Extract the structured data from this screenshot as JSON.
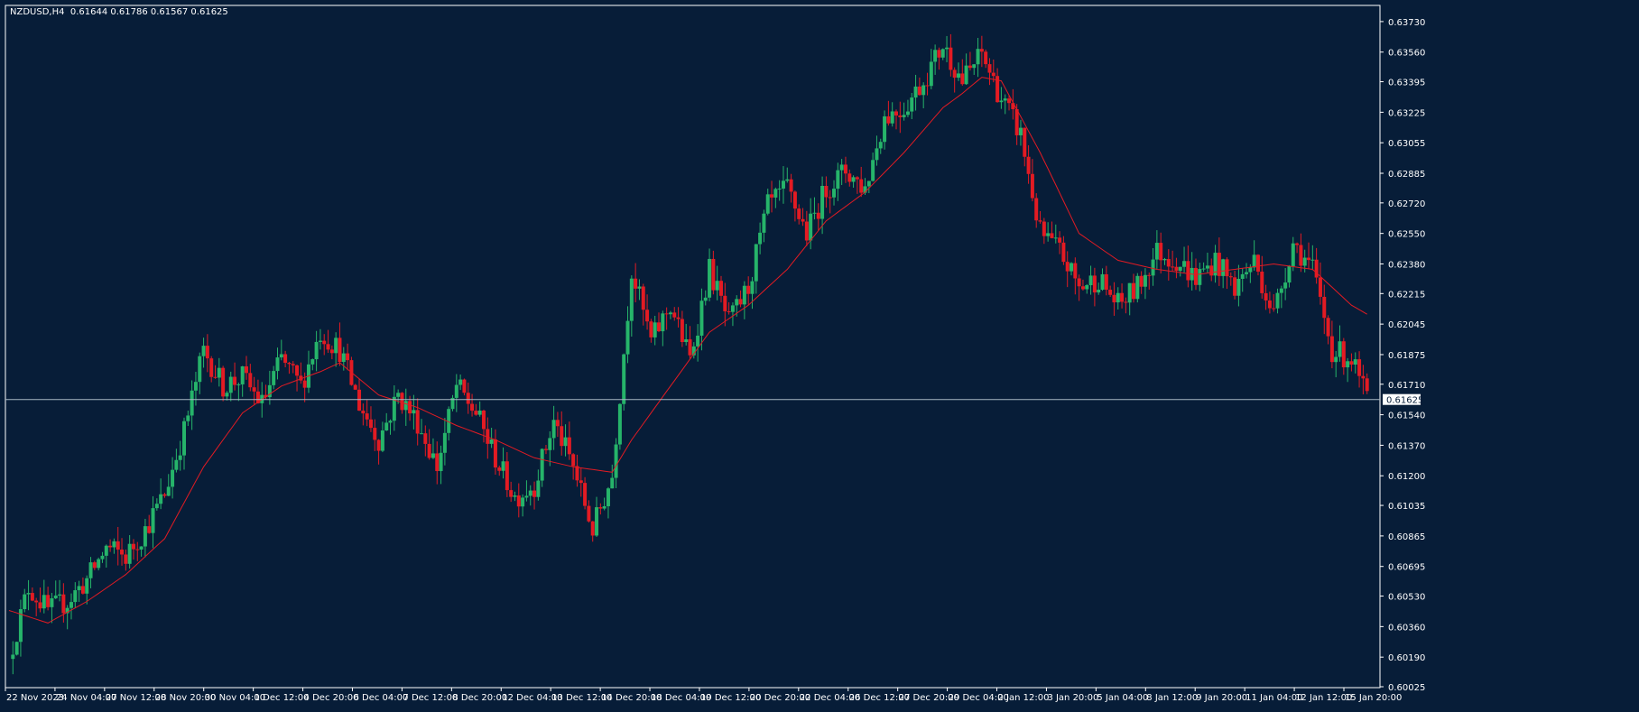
{
  "header": {
    "symbol": "NZDUSD,H4",
    "ohlc": "0.61644 0.61786 0.61567 0.61625"
  },
  "colors": {
    "background": "#071d38",
    "frame": "#ffffff",
    "bull": "#26b46a",
    "bear": "#e31b23",
    "moving_average": "#e31b23",
    "bid_line": "#a8b8c4"
  },
  "chart_data": {
    "type": "candlestick",
    "symbol": "NZDUSD",
    "timeframe": "H4",
    "current_price": 0.61625,
    "ylim": [
      0.6002,
      0.6382
    ],
    "y_ticks": [
      "0.63730",
      "0.63560",
      "0.63395",
      "0.63225",
      "0.63055",
      "0.62885",
      "0.62720",
      "0.62550",
      "0.62380",
      "0.62215",
      "0.62045",
      "0.61875",
      "0.61710",
      "0.61540",
      "0.61370",
      "0.61200",
      "0.61035",
      "0.60865",
      "0.60695",
      "0.60530",
      "0.60360",
      "0.60190",
      "0.60025"
    ],
    "price_label": "0.61625",
    "x_ticks": [
      "22 Nov 2023",
      "24 Nov 04:00",
      "27 Nov 12:00",
      "28 Nov 20:00",
      "30 Nov 04:00",
      "1 Dec 12:00",
      "4 Dec 20:00",
      "6 Dec 04:00",
      "7 Dec 12:00",
      "8 Dec 20:00",
      "12 Dec 04:00",
      "13 Dec 12:00",
      "14 Dec 20:00",
      "18 Dec 04:00",
      "19 Dec 12:00",
      "20 Dec 20:00",
      "22 Dec 04:00",
      "26 Dec 12:00",
      "27 Dec 20:00",
      "29 Dec 04:00",
      "2 Jan 12:00",
      "3 Jan 20:00",
      "5 Jan 04:00",
      "8 Jan 12:00",
      "9 Jan 20:00",
      "11 Jan 04:00",
      "12 Jan 12:00",
      "15 Jan 20:00"
    ],
    "close_path": [
      [
        0,
        0.6018
      ],
      [
        5,
        0.6058
      ],
      [
        10,
        0.6045
      ],
      [
        15,
        0.605
      ],
      [
        20,
        0.6062
      ],
      [
        25,
        0.608
      ],
      [
        30,
        0.6075
      ],
      [
        35,
        0.609
      ],
      [
        40,
        0.611
      ],
      [
        45,
        0.6145
      ],
      [
        50,
        0.619
      ],
      [
        55,
        0.617
      ],
      [
        60,
        0.6175
      ],
      [
        65,
        0.616
      ],
      [
        70,
        0.6185
      ],
      [
        75,
        0.617
      ],
      [
        80,
        0.62
      ],
      [
        85,
        0.619
      ],
      [
        90,
        0.616
      ],
      [
        95,
        0.614
      ],
      [
        100,
        0.6165
      ],
      [
        105,
        0.615
      ],
      [
        110,
        0.6125
      ],
      [
        115,
        0.617
      ],
      [
        120,
        0.6155
      ],
      [
        125,
        0.613
      ],
      [
        130,
        0.6108
      ],
      [
        135,
        0.6115
      ],
      [
        140,
        0.615
      ],
      [
        145,
        0.6125
      ],
      [
        150,
        0.609
      ],
      [
        155,
        0.612
      ],
      [
        160,
        0.6235
      ],
      [
        165,
        0.6195
      ],
      [
        170,
        0.6215
      ],
      [
        175,
        0.6185
      ],
      [
        180,
        0.6235
      ],
      [
        185,
        0.6205
      ],
      [
        190,
        0.6225
      ],
      [
        195,
        0.627
      ],
      [
        200,
        0.628
      ],
      [
        205,
        0.6255
      ],
      [
        210,
        0.628
      ],
      [
        215,
        0.629
      ],
      [
        220,
        0.628
      ],
      [
        225,
        0.632
      ],
      [
        230,
        0.6325
      ],
      [
        235,
        0.634
      ],
      [
        240,
        0.636
      ],
      [
        245,
        0.634
      ],
      [
        250,
        0.6355
      ],
      [
        255,
        0.633
      ],
      [
        260,
        0.631
      ],
      [
        265,
        0.6255
      ],
      [
        270,
        0.6245
      ],
      [
        275,
        0.6225
      ],
      [
        280,
        0.623
      ],
      [
        285,
        0.6215
      ],
      [
        290,
        0.6225
      ],
      [
        295,
        0.6245
      ],
      [
        300,
        0.624
      ],
      [
        305,
        0.623
      ],
      [
        310,
        0.624
      ],
      [
        315,
        0.6225
      ],
      [
        320,
        0.624
      ],
      [
        325,
        0.621
      ],
      [
        330,
        0.625
      ],
      [
        335,
        0.6235
      ],
      [
        340,
        0.619
      ],
      [
        345,
        0.6185
      ],
      [
        349,
        0.61625
      ]
    ],
    "ma_path": [
      [
        0,
        0.6045
      ],
      [
        10,
        0.6038
      ],
      [
        20,
        0.605
      ],
      [
        30,
        0.6065
      ],
      [
        40,
        0.6085
      ],
      [
        50,
        0.6125
      ],
      [
        60,
        0.6155
      ],
      [
        70,
        0.617
      ],
      [
        80,
        0.6178
      ],
      [
        85,
        0.6183
      ],
      [
        95,
        0.6165
      ],
      [
        105,
        0.6158
      ],
      [
        115,
        0.6148
      ],
      [
        125,
        0.614
      ],
      [
        135,
        0.613
      ],
      [
        145,
        0.6125
      ],
      [
        155,
        0.6122
      ],
      [
        160,
        0.614
      ],
      [
        170,
        0.617
      ],
      [
        180,
        0.62
      ],
      [
        190,
        0.6215
      ],
      [
        200,
        0.6235
      ],
      [
        210,
        0.6262
      ],
      [
        220,
        0.6278
      ],
      [
        230,
        0.63
      ],
      [
        240,
        0.6325
      ],
      [
        245,
        0.6333
      ],
      [
        250,
        0.6342
      ],
      [
        255,
        0.634
      ],
      [
        265,
        0.63
      ],
      [
        275,
        0.6255
      ],
      [
        285,
        0.624
      ],
      [
        295,
        0.6235
      ],
      [
        305,
        0.6232
      ],
      [
        315,
        0.6235
      ],
      [
        325,
        0.6238
      ],
      [
        335,
        0.6235
      ],
      [
        345,
        0.6215
      ],
      [
        349,
        0.621
      ]
    ]
  }
}
